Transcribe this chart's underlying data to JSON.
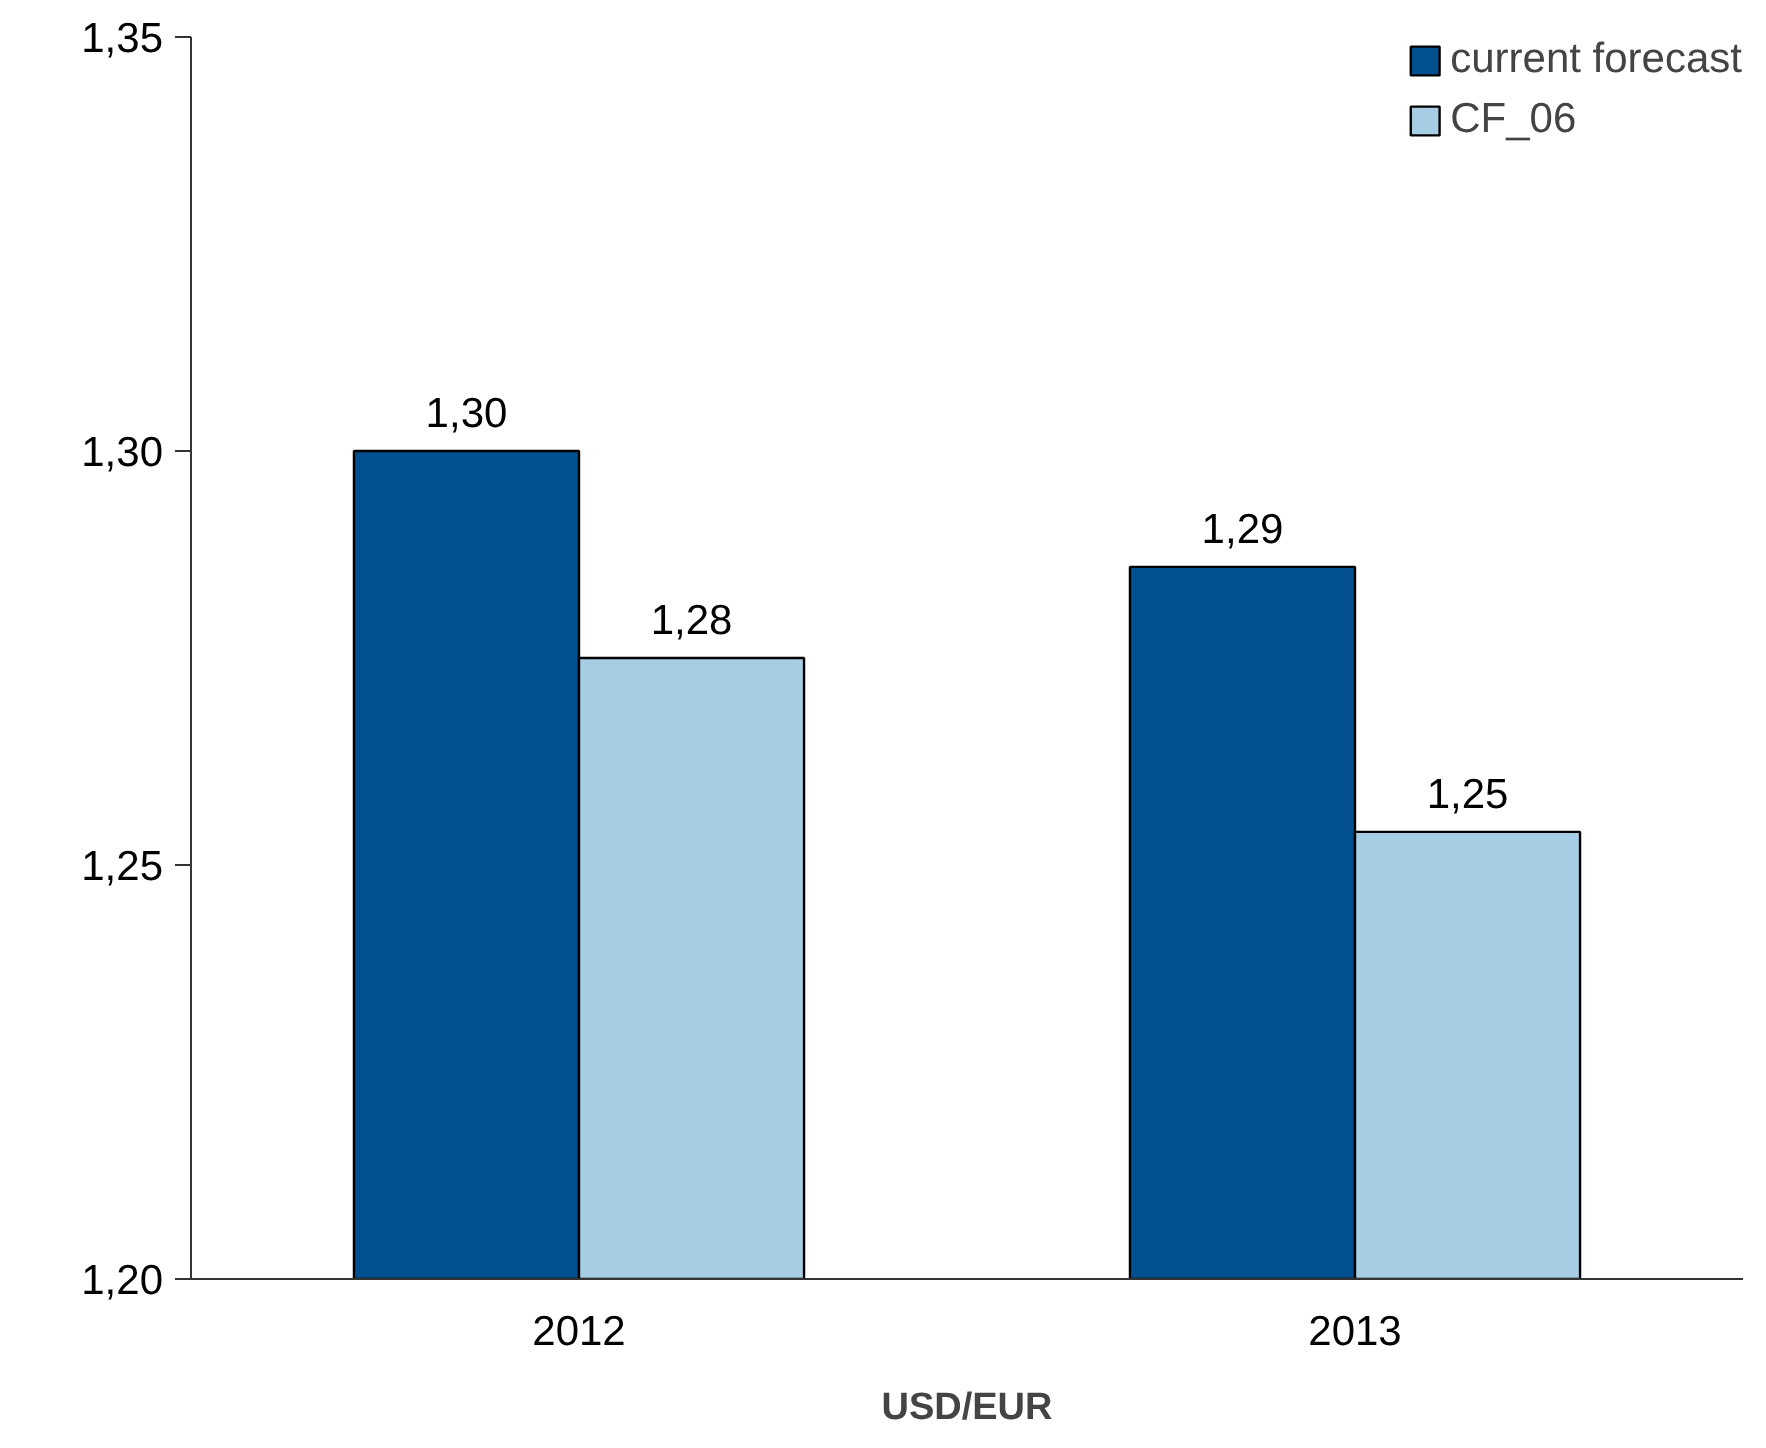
{
  "chart_data": {
    "type": "bar",
    "xlabel": "USD/EUR",
    "categories": [
      "2012",
      "2013"
    ],
    "series": [
      {
        "name": "current forecast",
        "color": "#02508f",
        "values": [
          1.3,
          1.286
        ],
        "value_labels": [
          "1,30",
          "1,29"
        ]
      },
      {
        "name": "CF_06",
        "color": "#a6cde3",
        "values": [
          1.275,
          1.254
        ],
        "value_labels": [
          "1,28",
          "1,25"
        ]
      }
    ],
    "ylim": [
      1.2,
      1.35
    ],
    "yticks": [
      {
        "value": 1.2,
        "label": "1,20"
      },
      {
        "value": 1.25,
        "label": "1,25"
      },
      {
        "value": 1.3,
        "label": "1,30"
      },
      {
        "value": 1.35,
        "label": "1,35"
      }
    ],
    "grid": false,
    "legend": "top right"
  }
}
